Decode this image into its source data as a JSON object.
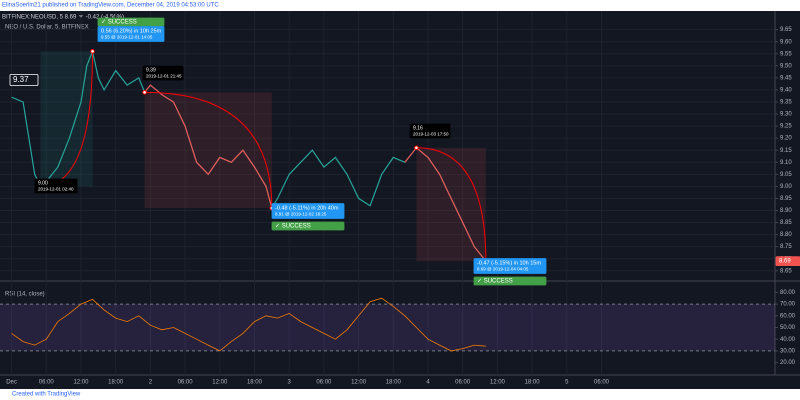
{
  "header": {
    "byline": "ElinaSoerlin21 published on TradingView.com, December 04, 2019 04:53:00 UTC",
    "symbol": "BITFINEX:NEOUSD, 5  8.69  ▼ -0.42 (-4.56%)",
    "footer": "Created with TradingView"
  },
  "chart_data": [
    {
      "type": "line",
      "title": "NEO / U.S. Dollar, 5, BITFINEX",
      "x": [
        0,
        2,
        4,
        5,
        6,
        8,
        10,
        12,
        13,
        14,
        15,
        16,
        18,
        20,
        22,
        23,
        24,
        26,
        28,
        30,
        32,
        34,
        36,
        38,
        40,
        42,
        44,
        45,
        46,
        48,
        50,
        52,
        54,
        56,
        58,
        60,
        62,
        64,
        66,
        68,
        70,
        72,
        74,
        76,
        78,
        80,
        82
      ],
      "series": [
        {
          "name": "NEOUSD",
          "color": "#26a69a",
          "down_color": "#ef5350",
          "values": [
            9.37,
            9.35,
            9.05,
            9.0,
            9.02,
            9.08,
            9.2,
            9.35,
            9.5,
            9.56,
            9.45,
            9.4,
            9.48,
            9.42,
            9.45,
            9.39,
            9.42,
            9.38,
            9.35,
            9.25,
            9.1,
            9.05,
            9.12,
            9.1,
            9.15,
            9.08,
            9.0,
            8.91,
            8.95,
            9.05,
            9.1,
            9.15,
            9.08,
            9.12,
            9.05,
            8.95,
            8.92,
            9.05,
            9.12,
            9.1,
            9.16,
            9.12,
            9.05,
            8.95,
            8.85,
            8.75,
            8.69
          ]
        }
      ],
      "xlim": [
        -2,
        132
      ],
      "xticks": [
        {
          "value": 0,
          "label": "Dec"
        },
        {
          "value": 6,
          "label": "06:00"
        },
        {
          "value": 12,
          "label": "12:00"
        },
        {
          "value": 18,
          "label": "18:00"
        },
        {
          "value": 24,
          "label": "2"
        },
        {
          "value": 30,
          "label": "06:00"
        },
        {
          "value": 36,
          "label": "12:00"
        },
        {
          "value": 42,
          "label": "18:00"
        },
        {
          "value": 48,
          "label": "3"
        },
        {
          "value": 54,
          "label": "06:00"
        },
        {
          "value": 60,
          "label": "12:00"
        },
        {
          "value": 66,
          "label": "18:00"
        },
        {
          "value": 72,
          "label": "4"
        },
        {
          "value": 78,
          "label": "06:00"
        },
        {
          "value": 84,
          "label": "12:00"
        },
        {
          "value": 90,
          "label": "18:00"
        },
        {
          "value": 96,
          "label": "5"
        },
        {
          "value": 102,
          "label": "06:00"
        }
      ],
      "ylim": [
        8.62,
        9.69
      ],
      "yticks": [
        9.65,
        {
          "value": 9.6,
          "label": "9.60"
        },
        9.55,
        {
          "value": 9.5,
          "label": "9.50"
        },
        9.45,
        {
          "value": 9.4,
          "label": "9.40"
        },
        9.35,
        {
          "value": 9.3,
          "label": "9.30"
        },
        9.25,
        {
          "value": 9.2,
          "label": "9.20"
        },
        9.15,
        {
          "value": 9.1,
          "label": "9.10"
        },
        9.05,
        {
          "value": 9,
          "label": "9.00"
        },
        8.95,
        {
          "value": 8.9,
          "label": "8.90"
        },
        8.85,
        {
          "value": 8.8,
          "label": "8.80"
        },
        8.75,
        {
          "value": 8.7,
          "label": "8.70"
        },
        8.65
      ],
      "grid": true,
      "annotations": [
        {
          "text": "9.37"
        },
        {
          "text": "9.00",
          "subtext": "2019-12-01 02:40"
        },
        {
          "text": "✓ SUCCESS"
        },
        {
          "text": "0.56 (6.20%) in 10h 25m",
          "subtext": "9.55 @ 2019-12-01 14:05"
        },
        {
          "text": "9.39",
          "subtext": "2019-12-01 21:45"
        },
        {
          "text": "-0.48 (-5.11%) in 20h 40m",
          "subtext": "8.91 @ 2019-12-02 18:25"
        },
        {
          "text": "✓ SUCCESS"
        },
        {
          "text": "9.16",
          "subtext": "2019-12-03 17:50"
        },
        {
          "text": "-0.47 (-5.15%) in 10h 15m",
          "subtext": "8.69 @ 2019-12-04 04:05"
        },
        {
          "text": "✓ SUCCESS"
        },
        {
          "text": "8.69"
        }
      ]
    },
    {
      "type": "line",
      "title": "RSI (14, close)",
      "x": [
        0,
        2,
        4,
        6,
        8,
        10,
        12,
        14,
        16,
        18,
        20,
        22,
        24,
        26,
        28,
        30,
        32,
        34,
        36,
        38,
        40,
        42,
        44,
        46,
        48,
        50,
        52,
        54,
        56,
        58,
        60,
        62,
        64,
        66,
        68,
        70,
        72,
        74,
        76,
        78,
        80,
        82
      ],
      "series": [
        {
          "name": "RSI",
          "color": "#f57c00",
          "values": [
            45,
            38,
            35,
            40,
            55,
            62,
            70,
            74,
            65,
            58,
            55,
            60,
            52,
            48,
            50,
            45,
            40,
            35,
            30,
            38,
            45,
            55,
            60,
            58,
            62,
            55,
            50,
            45,
            40,
            48,
            60,
            72,
            75,
            68,
            60,
            50,
            40,
            35,
            30,
            32,
            35,
            34
          ]
        }
      ],
      "xlim": [
        -2,
        132
      ],
      "ylim": [
        12,
        88
      ],
      "yticks": [
        {
          "value": 80,
          "label": "80.00"
        },
        {
          "value": 70,
          "label": "70.00"
        },
        {
          "value": 60,
          "label": "60.00"
        },
        {
          "value": 50,
          "label": "50.00"
        },
        {
          "value": 40,
          "label": "40.00"
        },
        {
          "value": 30,
          "label": "30.00"
        },
        {
          "value": 20,
          "label": "20.00"
        }
      ],
      "band": [
        30,
        70
      ]
    }
  ]
}
